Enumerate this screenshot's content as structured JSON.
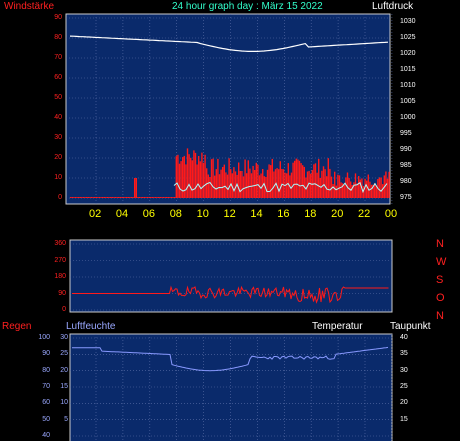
{
  "header": {
    "wind_label": "Windstärke",
    "title": "24 hour graph day : März 15 2022",
    "pressure_label": "Luftdruck"
  },
  "wind_axis": [
    "90",
    "80",
    "70",
    "60",
    "50",
    "40",
    "30",
    "20",
    "10",
    "0"
  ],
  "pressure_axis": [
    "1030",
    "1025",
    "1020",
    "1015",
    "1010",
    "1005",
    "1000",
    "995",
    "990",
    "985",
    "980",
    "975"
  ],
  "hour_ticks": [
    "02",
    "04",
    "06",
    "08",
    "10",
    "12",
    "14",
    "16",
    "18",
    "20",
    "22",
    "00"
  ],
  "direction_axis": [
    "360",
    "270",
    "180",
    "90",
    "0"
  ],
  "direction_letters": [
    "N",
    "W",
    "S",
    "O",
    "N"
  ],
  "bottom_header": {
    "rain_label": "Regen",
    "humidity_label": "Luftfeuchte",
    "temp_label": "Temperatur",
    "dew_label": "Taupunkt"
  },
  "humidity_axis": [
    "100",
    "90",
    "80",
    "70",
    "60",
    "50",
    "40"
  ],
  "rain_axis": [
    "30",
    "25",
    "20",
    "15",
    "10",
    "5"
  ],
  "temp_axis": [
    "40",
    "35",
    "30",
    "25",
    "20",
    "15"
  ],
  "colors": {
    "plot_bg": "#0a2a6b",
    "wind_red": "#ff1a1a",
    "pressure_white": "#ffffff",
    "humidity_blue": "#8899ff",
    "gust_cyan": "#aaffff",
    "hour_yellow": "#ffff00",
    "title_cyan": "#33ffcc"
  }
}
